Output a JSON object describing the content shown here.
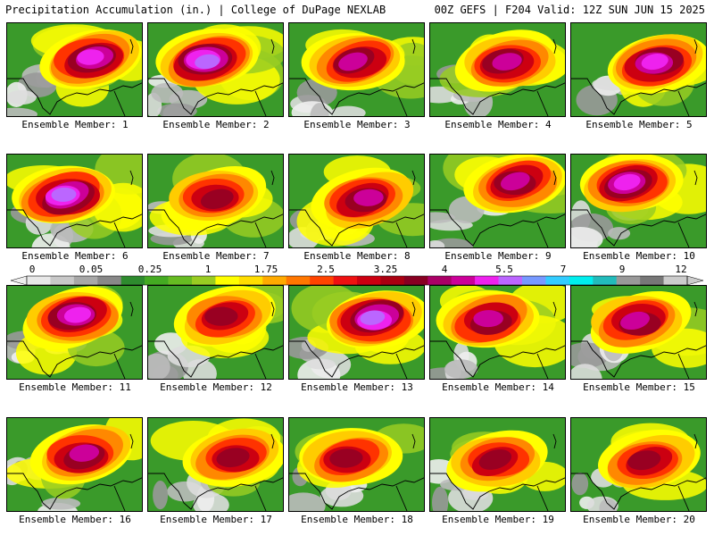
{
  "header": {
    "title": "Precipitation Accumulation (in.) | College of DuPage NEXLAB",
    "run_info": "00Z GEFS | F204 Valid: 12Z SUN JUN 15 2025"
  },
  "panels": [
    {
      "label": "Ensemble Member: 1",
      "intensity": 0.78
    },
    {
      "label": "Ensemble Member: 2",
      "intensity": 0.85
    },
    {
      "label": "Ensemble Member: 3",
      "intensity": 0.7
    },
    {
      "label": "Ensemble Member: 4",
      "intensity": 0.72
    },
    {
      "label": "Ensemble Member: 5",
      "intensity": 0.8
    },
    {
      "label": "Ensemble Member: 6",
      "intensity": 0.88
    },
    {
      "label": "Ensemble Member: 7",
      "intensity": 0.55
    },
    {
      "label": "Ensemble Member: 8",
      "intensity": 0.68
    },
    {
      "label": "Ensemble Member: 9",
      "intensity": 0.7
    },
    {
      "label": "Ensemble Member: 10",
      "intensity": 0.8
    },
    {
      "label": "Ensemble Member: 11",
      "intensity": 0.82
    },
    {
      "label": "Ensemble Member: 12",
      "intensity": 0.55
    },
    {
      "label": "Ensemble Member: 13",
      "intensity": 0.86
    },
    {
      "label": "Ensemble Member: 14",
      "intensity": 0.72
    },
    {
      "label": "Ensemble Member: 15",
      "intensity": 0.7
    },
    {
      "label": "Ensemble Member: 16",
      "intensity": 0.72
    },
    {
      "label": "Ensemble Member: 17",
      "intensity": 0.6
    },
    {
      "label": "Ensemble Member: 18",
      "intensity": 0.55
    },
    {
      "label": "Ensemble Member: 19",
      "intensity": 0.62
    },
    {
      "label": "Ensemble Member: 20",
      "intensity": 0.58
    }
  ],
  "colorbar": {
    "tick_labels": [
      "0",
      "0.05",
      "0.25",
      "1",
      "1.75",
      "2.5",
      "3.25",
      "4",
      "5.5",
      "7",
      "9",
      "12"
    ],
    "colors": [
      "#e8e8e8",
      "#c8c8c8",
      "#a8a8a8",
      "#888888",
      "#2e8b2e",
      "#44aa22",
      "#66bb22",
      "#99cc22",
      "#ffff00",
      "#ffdd00",
      "#ffaa00",
      "#ff7700",
      "#ff4400",
      "#ee1111",
      "#cc0011",
      "#aa0011",
      "#880022",
      "#aa0066",
      "#cc0099",
      "#ee22ee",
      "#bb66ff",
      "#7799ff",
      "#33ccff",
      "#00eeee",
      "#22bbbb",
      "#999999",
      "#777777",
      "#cccccc"
    ]
  }
}
